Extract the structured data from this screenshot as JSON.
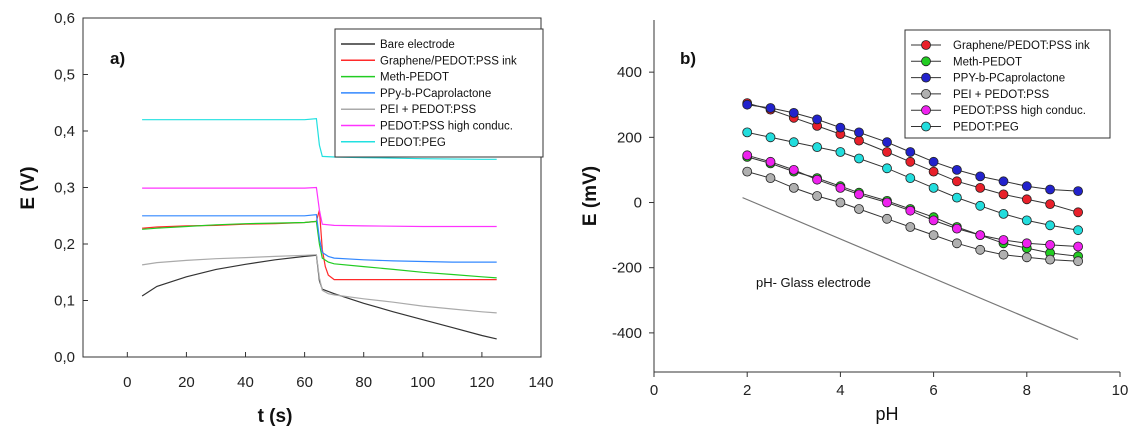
{
  "chart_data": [
    {
      "type": "line",
      "panel_label": "a)",
      "xlabel": "t (s)",
      "ylabel": "E (V)",
      "xlim": [
        -15,
        140
      ],
      "ylim": [
        0.0,
        0.6
      ],
      "x_ticks": [
        "0",
        "20",
        "40",
        "60",
        "80",
        "100",
        "120",
        "140"
      ],
      "y_ticks": [
        "0,0",
        "0,1",
        "0,2",
        "0,3",
        "0,4",
        "0,5",
        "0,6"
      ],
      "legend_position": "top-right",
      "series": [
        {
          "name": "Bare electrode",
          "color": "#333333",
          "x": [
            5,
            10,
            20,
            30,
            40,
            50,
            60,
            64,
            65,
            66,
            70,
            80,
            90,
            100,
            110,
            120,
            125
          ],
          "y": [
            0.108,
            0.125,
            0.142,
            0.155,
            0.164,
            0.172,
            0.178,
            0.18,
            0.135,
            0.12,
            0.112,
            0.095,
            0.08,
            0.066,
            0.052,
            0.038,
            0.032
          ]
        },
        {
          "name": "Graphene/PEDOT:PSS ink",
          "color": "#ff2a2a",
          "x": [
            5,
            10,
            20,
            30,
            40,
            50,
            60,
            64,
            65,
            66,
            67,
            68,
            70,
            80,
            90,
            100,
            110,
            120,
            125
          ],
          "y": [
            0.228,
            0.23,
            0.232,
            0.233,
            0.235,
            0.236,
            0.238,
            0.24,
            0.26,
            0.19,
            0.16,
            0.145,
            0.137,
            0.137,
            0.137,
            0.137,
            0.137,
            0.137,
            0.137
          ]
        },
        {
          "name": "Meth-PEDOT",
          "color": "#22cc22",
          "x": [
            5,
            10,
            20,
            30,
            40,
            50,
            60,
            64,
            65,
            66,
            68,
            70,
            80,
            90,
            100,
            110,
            120,
            125
          ],
          "y": [
            0.226,
            0.228,
            0.231,
            0.234,
            0.236,
            0.237,
            0.238,
            0.24,
            0.2,
            0.175,
            0.168,
            0.165,
            0.16,
            0.155,
            0.15,
            0.146,
            0.142,
            0.14
          ]
        },
        {
          "name": "PPy-b-PCaprolactone",
          "color": "#3388ff",
          "x": [
            5,
            20,
            40,
            60,
            64,
            65,
            66,
            68,
            70,
            80,
            90,
            100,
            110,
            120,
            125
          ],
          "y": [
            0.25,
            0.25,
            0.25,
            0.25,
            0.252,
            0.21,
            0.185,
            0.178,
            0.175,
            0.172,
            0.17,
            0.169,
            0.168,
            0.168,
            0.168
          ]
        },
        {
          "name": "PEI + PEDOT:PSS",
          "color": "#aaaaaa",
          "x": [
            5,
            10,
            20,
            30,
            40,
            50,
            60,
            64,
            65,
            66,
            68,
            70,
            80,
            90,
            100,
            110,
            120,
            125
          ],
          "y": [
            0.163,
            0.167,
            0.171,
            0.174,
            0.176,
            0.178,
            0.18,
            0.181,
            0.14,
            0.118,
            0.112,
            0.11,
            0.103,
            0.097,
            0.09,
            0.085,
            0.08,
            0.078
          ]
        },
        {
          "name": "PEDOT:PSS high conduc.",
          "color": "#ff33ff",
          "x": [
            5,
            20,
            40,
            60,
            64,
            65,
            66,
            70,
            80,
            100,
            120,
            125
          ],
          "y": [
            0.299,
            0.299,
            0.299,
            0.299,
            0.3,
            0.26,
            0.235,
            0.233,
            0.232,
            0.231,
            0.231,
            0.231
          ]
        },
        {
          "name": "PEDOT:PEG",
          "color": "#22e0e0",
          "x": [
            5,
            20,
            40,
            60,
            64,
            65,
            66,
            70,
            80,
            100,
            120,
            125
          ],
          "y": [
            0.42,
            0.42,
            0.42,
            0.42,
            0.422,
            0.375,
            0.355,
            0.354,
            0.353,
            0.351,
            0.35,
            0.35
          ]
        }
      ]
    },
    {
      "type": "line",
      "panel_label": "b)",
      "xlabel": "pH",
      "ylabel": "E (mV)",
      "xlim": [
        0,
        10
      ],
      "ylim": [
        -520,
        560
      ],
      "x_ticks": [
        "0",
        "2",
        "4",
        "6",
        "8",
        "10"
      ],
      "y_ticks": [
        "-400",
        "-200",
        "0",
        "200",
        "400"
      ],
      "legend_position": "top-right",
      "annotation": "pH- Glass electrode",
      "reference_line": {
        "x": [
          1.9,
          9.1
        ],
        "y": [
          15,
          -420
        ],
        "color": "#777777"
      },
      "series": [
        {
          "name": "Graphene/PEDOT:PSS ink",
          "color": "#e8202a",
          "x": [
            2.0,
            2.5,
            3.0,
            3.5,
            4.0,
            4.4,
            5.0,
            5.5,
            6.0,
            6.5,
            7.0,
            7.5,
            8.0,
            8.5,
            9.1
          ],
          "y": [
            305,
            285,
            260,
            235,
            210,
            190,
            155,
            125,
            95,
            65,
            45,
            25,
            10,
            -5,
            -30
          ]
        },
        {
          "name": "Meth-PEDOT",
          "color": "#22cc22",
          "x": [
            2.0,
            2.5,
            3.0,
            3.5,
            4.0,
            4.4,
            5.0,
            5.5,
            6.0,
            6.5,
            7.0,
            7.5,
            8.0,
            8.5,
            9.1
          ],
          "y": [
            140,
            120,
            95,
            75,
            50,
            30,
            5,
            -20,
            -45,
            -75,
            -100,
            -125,
            -140,
            -155,
            -165
          ]
        },
        {
          "name": "PPY-b-PCaprolactone",
          "color": "#2222cc",
          "x": [
            2.0,
            2.5,
            3.0,
            3.5,
            4.0,
            4.4,
            5.0,
            5.5,
            6.0,
            6.5,
            7.0,
            7.5,
            8.0,
            8.5,
            9.1
          ],
          "y": [
            300,
            290,
            275,
            255,
            230,
            215,
            185,
            155,
            125,
            100,
            80,
            65,
            50,
            40,
            35
          ]
        },
        {
          "name": "PEI + PEDOT:PSS",
          "color": "#b0b0b0",
          "x": [
            2.0,
            2.5,
            3.0,
            3.5,
            4.0,
            4.4,
            5.0,
            5.5,
            6.0,
            6.5,
            7.0,
            7.5,
            8.0,
            8.5,
            9.1
          ],
          "y": [
            95,
            75,
            45,
            20,
            0,
            -20,
            -50,
            -75,
            -100,
            -125,
            -145,
            -160,
            -168,
            -175,
            -180
          ]
        },
        {
          "name": "PEDOT:PSS high conduc.",
          "color": "#ee22ee",
          "x": [
            2.0,
            2.5,
            3.0,
            3.5,
            4.0,
            4.4,
            5.0,
            5.5,
            6.0,
            6.5,
            7.0,
            7.5,
            8.0,
            8.5,
            9.1
          ],
          "y": [
            145,
            125,
            100,
            70,
            45,
            25,
            0,
            -25,
            -55,
            -80,
            -100,
            -115,
            -125,
            -130,
            -135
          ]
        },
        {
          "name": "PEDOT:PEG",
          "color": "#22dddd",
          "x": [
            2.0,
            2.5,
            3.0,
            3.5,
            4.0,
            4.4,
            5.0,
            5.5,
            6.0,
            6.5,
            7.0,
            7.5,
            8.0,
            8.5,
            9.1
          ],
          "y": [
            215,
            200,
            185,
            170,
            155,
            135,
            105,
            75,
            45,
            15,
            -10,
            -35,
            -55,
            -70,
            -85
          ]
        }
      ]
    }
  ]
}
